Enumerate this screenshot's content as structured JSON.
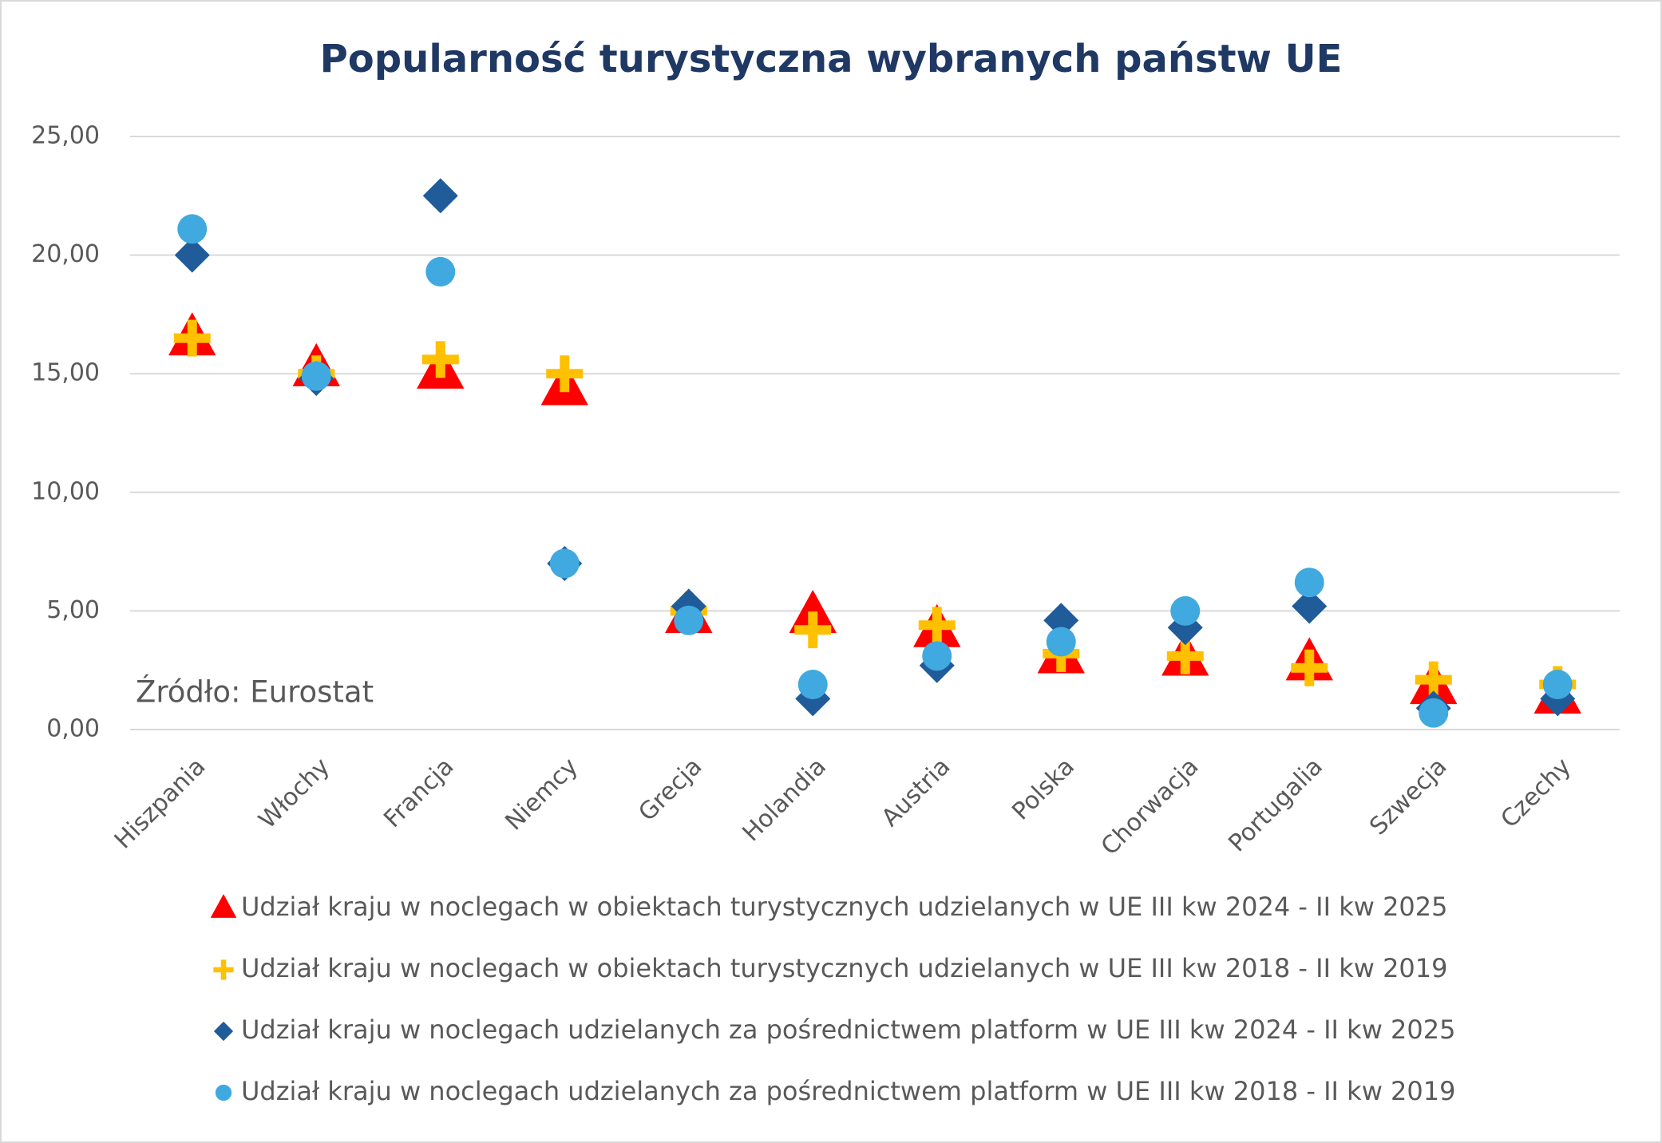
{
  "chart_data": {
    "type": "scatter",
    "title": "Popularność turystyczna wybranych państw UE",
    "annotation": "Źródło: Eurostat",
    "categories": [
      "Hiszpania",
      "Włochy",
      "Francja",
      "Niemcy",
      "Grecja",
      "Holandia",
      "Austria",
      "Polska",
      "Chorwacja",
      "Portugalia",
      "Szwecja",
      "Czechy"
    ],
    "ylim": [
      0,
      25
    ],
    "yticks": [
      {
        "value": 0,
        "label": "0,00"
      },
      {
        "value": 5,
        "label": "5,00"
      },
      {
        "value": 10,
        "label": "10,00"
      },
      {
        "value": 15,
        "label": "15,00"
      },
      {
        "value": 20,
        "label": "20,00"
      },
      {
        "value": 25,
        "label": "25,00"
      }
    ],
    "grid": true,
    "legend": "bottom",
    "series": [
      {
        "name": "Udział kraju w noclegach w obiektach turystycznych udzielanych w UE III kw 2024 - II kw 2025",
        "color": "#ff0000",
        "marker": "triangle",
        "values": [
          16.5,
          15.2,
          15.1,
          14.4,
          4.8,
          4.8,
          4.2,
          3.1,
          3.0,
          2.8,
          1.8,
          1.4
        ]
      },
      {
        "name": "Udział kraju w noclegach w obiektach turystycznych udzielanych w UE III kw 2018 - II kw 2019",
        "color": "#ffc000",
        "marker": "plus",
        "values": [
          16.5,
          15.0,
          15.6,
          15.0,
          5.0,
          4.2,
          4.4,
          3.2,
          3.1,
          2.6,
          2.1,
          1.9
        ]
      },
      {
        "name": "Udział kraju w noclegach udzielanych za pośrednictwem platform w UE III kw 2024 - II kw 2025",
        "color": "#1f5c99",
        "marker": "diamond",
        "values": [
          20.0,
          14.8,
          22.5,
          7.0,
          5.2,
          1.3,
          2.7,
          4.6,
          4.3,
          5.2,
          0.9,
          1.3
        ]
      },
      {
        "name": "Udział kraju w noclegach udzielanych za pośrednictwem platform w UE III kw 2018 - II kw 2019",
        "color": "#3fa9e0",
        "marker": "circle",
        "values": [
          21.1,
          14.9,
          19.3,
          7.0,
          4.6,
          1.9,
          3.1,
          3.7,
          5.0,
          6.2,
          0.7,
          1.9
        ]
      }
    ]
  }
}
